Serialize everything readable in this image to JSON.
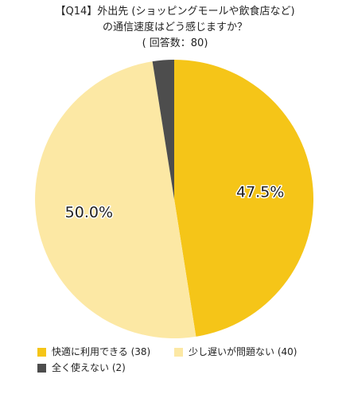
{
  "title": {
    "line1": "【Q14】外出先 (ショッピングモールや飲食店など)",
    "line2": "の通信速度はどう感じますか？",
    "line3": "( 回答数：80)"
  },
  "chart_data": {
    "type": "pie",
    "start_angle_deg": 0,
    "direction": "clockwise",
    "slices": [
      {
        "name": "快適に利用できる (38)",
        "value": 47.5,
        "label": "47.5%",
        "color": "#F5C518",
        "show_label": true
      },
      {
        "name": "少し遅いが問題ない (40)",
        "value": 50.0,
        "label": "50.0%",
        "color": "#FCE8A4",
        "show_label": true
      },
      {
        "name": "全く使えない (2)",
        "value": 2.5,
        "label": "",
        "color": "#4D4D4D",
        "show_label": false
      }
    ]
  },
  "legend": [
    {
      "label": "快適に利用できる (38)",
      "color": "#F5C518"
    },
    {
      "label": "少し遅いが問題ない (40)",
      "color": "#FCE8A4"
    },
    {
      "label": "全く使えない (2)",
      "color": "#4D4D4D"
    }
  ]
}
